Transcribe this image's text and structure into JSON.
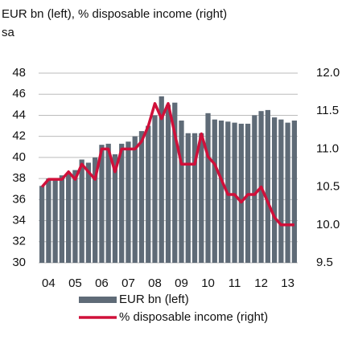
{
  "chart_data": {
    "type": "bar_line",
    "title": "EUR bn (left), % disposable income (right)",
    "subtitle": "sa",
    "categories": [
      null,
      "04",
      null,
      null,
      null,
      "05",
      null,
      null,
      null,
      "06",
      null,
      null,
      null,
      "07",
      null,
      null,
      null,
      "08",
      null,
      null,
      null,
      "09",
      null,
      null,
      null,
      "10",
      null,
      null,
      null,
      "11",
      null,
      null,
      null,
      "12",
      null,
      null,
      null,
      "13",
      null
    ],
    "series": [
      {
        "name": "EUR bn (left)",
        "type": "bar",
        "color": "#5f6b77",
        "values": [
          37.3,
          38,
          38,
          38.3,
          38.5,
          38.8,
          39.8,
          39.5,
          40,
          41.2,
          41.3,
          40.3,
          41.3,
          41.5,
          42,
          42.5,
          43,
          44,
          45.8,
          45,
          45.2,
          43.5,
          42.3,
          42.3,
          42.3,
          44.2,
          43.6,
          43.5,
          43.4,
          43.3,
          43.2,
          43.2,
          44,
          44.4,
          44.5,
          43.8,
          43.6,
          43.3,
          43.5
        ]
      },
      {
        "name": "% disposable income (right)",
        "type": "line",
        "axis": "y2",
        "color": "#d0103a",
        "values": [
          10.5,
          10.6,
          10.6,
          10.6,
          10.7,
          10.6,
          10.8,
          10.7,
          10.6,
          11.0,
          11.0,
          10.7,
          11.0,
          11.0,
          11.0,
          11.1,
          11.3,
          11.6,
          11.4,
          11.6,
          11.2,
          10.8,
          10.8,
          10.8,
          11.2,
          10.9,
          10.8,
          10.6,
          10.4,
          10.4,
          10.3,
          10.4,
          10.4,
          10.5,
          10.3,
          10.1,
          10.0,
          10.0,
          10.0
        ]
      }
    ],
    "ylim": [
      30,
      48
    ],
    "yticks": [
      30,
      32,
      34,
      36,
      38,
      40,
      42,
      44,
      46,
      48
    ],
    "y2lim": [
      9.5,
      12
    ],
    "y2ticks": [
      9.5,
      {
        "value": 10,
        "label": "10.0"
      },
      10.5,
      {
        "value": 11,
        "label": "11.0"
      },
      11.5,
      {
        "value": 12,
        "label": "12.0"
      }
    ],
    "grid": true,
    "legend": "bottom"
  }
}
